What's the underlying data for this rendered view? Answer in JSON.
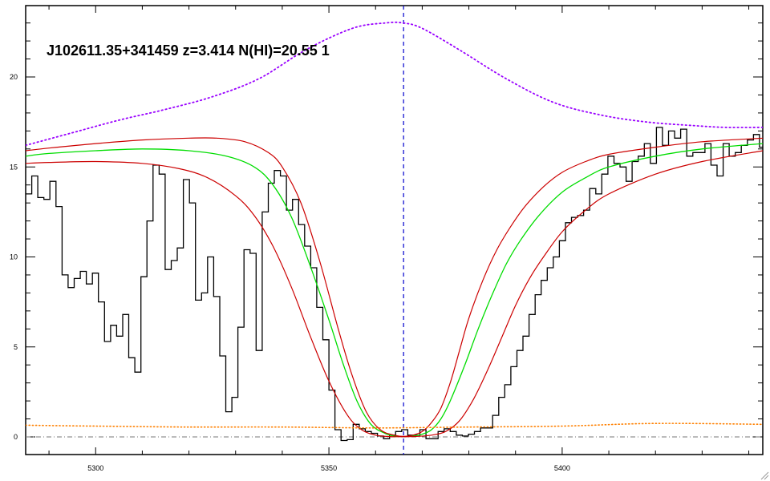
{
  "chart_data": {
    "type": "line",
    "title": "J102611.35+341459 z=3.414 N(HI)=20.55 1",
    "xlabel": "",
    "ylabel": "",
    "xlim": [
      5285,
      5443
    ],
    "ylim": [
      -1,
      24
    ],
    "x_ticks": [
      5300,
      5350,
      5400
    ],
    "y_ticks": [
      0,
      5,
      10,
      15,
      20
    ],
    "grid": false,
    "center_wavelength": 5366,
    "colors": {
      "flux": "#000000",
      "fit": "#00dd00",
      "fit_bounds": "#cc0000",
      "continuum": "#9900ff",
      "error": "#ff8000",
      "center_line": "#0000cc",
      "zero_line": "#777777"
    },
    "series": [
      {
        "style": "step",
        "x": [
          5285,
          5286.3,
          5287.6,
          5288.9,
          5290.2,
          5291.5,
          5292.8,
          5294.1,
          5295.4,
          5296.7,
          5298,
          5299.3,
          5300.6,
          5301.9,
          5303.2,
          5304.5,
          5305.8,
          5307.1,
          5308.4,
          5309.7,
          5311,
          5312.3,
          5313.6,
          5314.9,
          5316.2,
          5317.5,
          5318.8,
          5320.1,
          5321.4,
          5322.7,
          5324,
          5325.3,
          5326.6,
          5327.9,
          5329.2,
          5330.5,
          5331.8,
          5333.1,
          5334.4,
          5335.7,
          5337,
          5338.3,
          5339.6,
          5340.9,
          5342.2,
          5343.5,
          5344.8,
          5346.1,
          5347.4,
          5348.7,
          5350,
          5351.3,
          5352.6,
          5353.9,
          5355.2,
          5356.5,
          5357.8,
          5359.1,
          5360.4,
          5361.7,
          5363,
          5364.3,
          5365.6,
          5366.9,
          5368.2,
          5369.5,
          5370.8,
          5372.1,
          5373.4,
          5374.7,
          5376,
          5377.3,
          5378.6,
          5379.9,
          5381.2,
          5382.5,
          5383.8,
          5385.1,
          5386.4,
          5387.7,
          5389,
          5390.3,
          5391.6,
          5392.9,
          5394.2,
          5395.5,
          5396.8,
          5398.1,
          5399.4,
          5400.7,
          5402,
          5403.3,
          5404.6,
          5405.9,
          5407.2,
          5408.5,
          5409.8,
          5411.1,
          5412.4,
          5413.7,
          5415,
          5416.3,
          5417.6,
          5418.9,
          5420.2,
          5421.5,
          5422.8,
          5424.1,
          5425.4,
          5426.7,
          5428,
          5429.3,
          5430.6,
          5431.9,
          5433.2,
          5434.5,
          5435.8,
          5437.1,
          5438.4,
          5439.7,
          5441,
          5442.3
        ],
        "y": [
          13.5,
          14.5,
          13.3,
          13.2,
          14.2,
          12.8,
          9,
          8.3,
          8.8,
          9.2,
          8.5,
          9.1,
          7.5,
          5.3,
          6.2,
          5.6,
          6.8,
          4.4,
          3.6,
          8.9,
          12,
          15.1,
          14.6,
          9.3,
          9.8,
          10.5,
          14.3,
          13,
          7.6,
          8,
          10,
          7.8,
          4.5,
          1.4,
          2.2,
          6.1,
          10.4,
          10.2,
          4.8,
          12.5,
          14.1,
          14.8,
          14.5,
          12.6,
          13.2,
          11.8,
          10.6,
          9.4,
          7.2,
          5.4,
          2.6,
          0.4,
          -0.2,
          -0.15,
          0.7,
          0.45,
          0.3,
          0.2,
          0.05,
          -0.1,
          0.1,
          0.3,
          0.4,
          0.1,
          0.1,
          0.4,
          -0.1,
          -0.1,
          0.3,
          0.45,
          0.3,
          0.1,
          0.05,
          0.15,
          0.3,
          0.5,
          0.5,
          1.2,
          2.2,
          2.9,
          3.9,
          4.8,
          5.6,
          6.8,
          7.9,
          8.7,
          9.4,
          10,
          10.9,
          11.9,
          12.2,
          12.3,
          12.6,
          13.8,
          13.5,
          14.6,
          15.6,
          15.2,
          15,
          14.2,
          15.3,
          15.6,
          16.3,
          15.2,
          17.2,
          16.2,
          17,
          16.6,
          17.1,
          15.6,
          15.8,
          15.8,
          16.3,
          15.1,
          14.5,
          16.3,
          15.6,
          15.8,
          16.2,
          16.5,
          16.8,
          16.1
        ]
      },
      {
        "style": "line",
        "x": [
          5285,
          5290,
          5300,
          5310,
          5320,
          5328,
          5334,
          5338,
          5342,
          5346,
          5350,
          5353,
          5356,
          5359,
          5362,
          5364,
          5366,
          5368,
          5370,
          5372,
          5374,
          5376,
          5379,
          5382,
          5385,
          5388,
          5391,
          5395,
          5400,
          5405,
          5410,
          5420,
          5430,
          5443
        ],
        "y": [
          15.6,
          15.75,
          15.9,
          16,
          15.9,
          15.6,
          15,
          14,
          12.2,
          9.5,
          6.5,
          4.1,
          2,
          0.7,
          0.2,
          0.05,
          0.02,
          0.05,
          0.15,
          0.4,
          1,
          2,
          3.9,
          6,
          7.9,
          9.6,
          10.9,
          12.3,
          13.6,
          14.4,
          15,
          15.6,
          16,
          16.3
        ]
      },
      {
        "style": "line",
        "x": [
          5285,
          5290,
          5300,
          5310,
          5320,
          5326,
          5332,
          5337,
          5340,
          5344,
          5348,
          5352,
          5355,
          5358,
          5361,
          5364,
          5366,
          5368,
          5370,
          5372,
          5374,
          5376,
          5378,
          5380,
          5383,
          5386,
          5389,
          5392,
          5396,
          5400,
          5405,
          5410,
          5420,
          5430,
          5443
        ],
        "y": [
          15.9,
          16.05,
          16.3,
          16.5,
          16.6,
          16.6,
          16.4,
          15.8,
          15,
          13,
          9.8,
          6,
          3.4,
          1.4,
          0.4,
          0.1,
          0.03,
          0.1,
          0.3,
          0.8,
          1.6,
          3,
          4.8,
          6.6,
          8.7,
          10.4,
          11.7,
          12.8,
          13.9,
          14.7,
          15.3,
          15.7,
          16.1,
          16.4,
          16.6
        ]
      },
      {
        "style": "line",
        "x": [
          5285,
          5290,
          5300,
          5310,
          5318,
          5324,
          5330,
          5334,
          5338,
          5342,
          5346,
          5350,
          5354,
          5357,
          5360,
          5363,
          5366,
          5369,
          5372,
          5375,
          5378,
          5381,
          5384,
          5387,
          5390,
          5393,
          5396,
          5400,
          5405,
          5410,
          5420,
          5430,
          5443
        ],
        "y": [
          15.2,
          15.25,
          15.3,
          15.2,
          14.9,
          14.4,
          13.4,
          12.3,
          10.6,
          8.3,
          5.6,
          3.1,
          1.2,
          0.4,
          0.1,
          0.02,
          0.01,
          0.03,
          0.1,
          0.3,
          0.9,
          2.1,
          3.7,
          5.5,
          7.3,
          8.8,
          10,
          11.4,
          12.6,
          13.5,
          14.6,
          15.3,
          15.9
        ]
      },
      {
        "style": "dotted",
        "x": [
          5285,
          5295,
          5305,
          5315,
          5325,
          5335,
          5345,
          5355,
          5362,
          5366,
          5370,
          5378,
          5388,
          5398,
          5408,
          5418,
          5428,
          5435,
          5443
        ],
        "y": [
          16.2,
          16.9,
          17.6,
          18.2,
          18.9,
          19.9,
          21.5,
          22.7,
          23,
          23,
          22.7,
          21.5,
          19.9,
          18.6,
          17.9,
          17.5,
          17.3,
          17.2,
          17.2
        ]
      },
      {
        "style": "dotted",
        "x": [
          5285,
          5300,
          5320,
          5340,
          5360,
          5380,
          5400,
          5420,
          5443
        ],
        "y": [
          0.65,
          0.6,
          0.55,
          0.55,
          0.5,
          0.55,
          0.6,
          0.75,
          0.7
        ]
      }
    ]
  }
}
